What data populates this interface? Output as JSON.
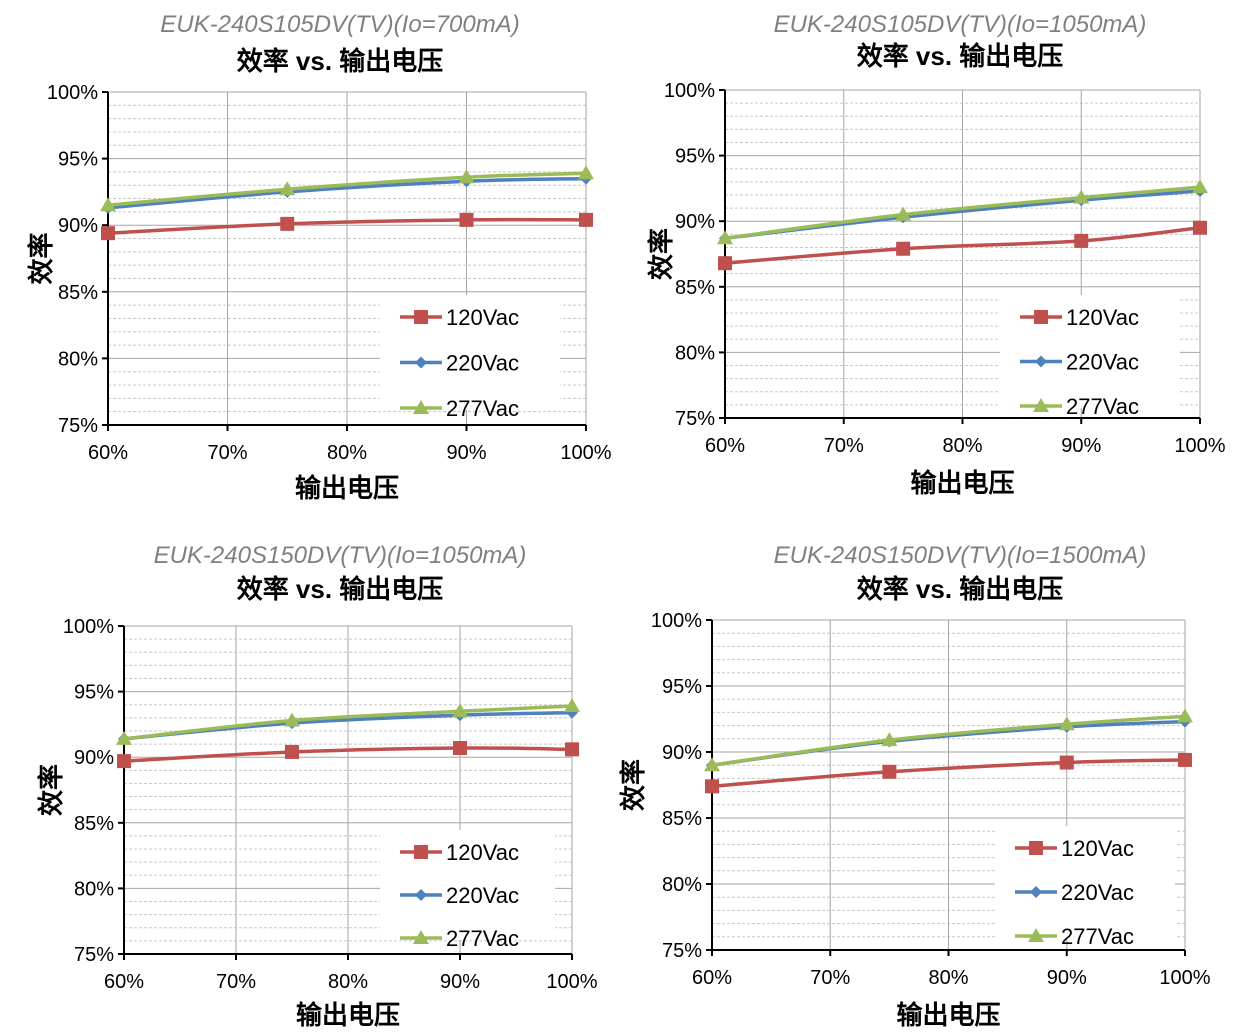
{
  "colors": {
    "120Vac": "#C0504D",
    "220Vac": "#4F81BD",
    "277Vac": "#9BBB59"
  },
  "chart_data": [
    {
      "type": "line",
      "subtitle": "EUK-240S105DV(TV)(Io=700mA)",
      "title": "效率 vs. 输出电压",
      "xlabel": "输出电压",
      "ylabel": "效率",
      "x": [
        60,
        75,
        90,
        100
      ],
      "xticks": [
        "60%",
        "70%",
        "80%",
        "90%",
        "100%"
      ],
      "yticks": [
        "75%",
        "80%",
        "85%",
        "90%",
        "95%",
        "100%"
      ],
      "xlim": [
        60,
        100
      ],
      "ylim": [
        75,
        100
      ],
      "grid": true,
      "legend": "bottom-right",
      "series": [
        {
          "name": "120Vac",
          "marker": "square",
          "values": [
            89.4,
            90.1,
            90.4,
            90.4
          ]
        },
        {
          "name": "220Vac",
          "marker": "diamond",
          "values": [
            91.3,
            92.5,
            93.3,
            93.5
          ]
        },
        {
          "name": "277Vac",
          "marker": "triangle",
          "values": [
            91.5,
            92.7,
            93.6,
            93.9
          ]
        }
      ]
    },
    {
      "type": "line",
      "subtitle": "EUK-240S105DV(TV)(Io=1050mA)",
      "title": "效率 vs. 输出电压",
      "xlabel": "输出电压",
      "ylabel": "效率",
      "x": [
        60,
        75,
        90,
        100
      ],
      "xticks": [
        "60%",
        "70%",
        "80%",
        "90%",
        "100%"
      ],
      "yticks": [
        "75%",
        "80%",
        "85%",
        "90%",
        "95%",
        "100%"
      ],
      "xlim": [
        60,
        100
      ],
      "ylim": [
        75,
        100
      ],
      "grid": true,
      "legend": "bottom-right",
      "series": [
        {
          "name": "120Vac",
          "marker": "square",
          "values": [
            86.8,
            87.9,
            88.5,
            89.5
          ]
        },
        {
          "name": "220Vac",
          "marker": "diamond",
          "values": [
            88.7,
            90.3,
            91.6,
            92.3
          ]
        },
        {
          "name": "277Vac",
          "marker": "triangle",
          "values": [
            88.7,
            90.5,
            91.8,
            92.6
          ]
        }
      ]
    },
    {
      "type": "line",
      "subtitle": "EUK-240S150DV(TV)(Io=1050mA)",
      "title": "效率 vs. 输出电压",
      "xlabel": "输出电压",
      "ylabel": "效率",
      "x": [
        60,
        75,
        90,
        100
      ],
      "xticks": [
        "60%",
        "70%",
        "80%",
        "90%",
        "100%"
      ],
      "yticks": [
        "75%",
        "80%",
        "85%",
        "90%",
        "95%",
        "100%"
      ],
      "xlim": [
        60,
        100
      ],
      "ylim": [
        75,
        100
      ],
      "grid": true,
      "legend": "bottom-right",
      "series": [
        {
          "name": "120Vac",
          "marker": "square",
          "values": [
            89.7,
            90.4,
            90.7,
            90.6
          ]
        },
        {
          "name": "220Vac",
          "marker": "diamond",
          "values": [
            91.4,
            92.6,
            93.2,
            93.4
          ]
        },
        {
          "name": "277Vac",
          "marker": "triangle",
          "values": [
            91.4,
            92.8,
            93.5,
            93.9
          ]
        }
      ]
    },
    {
      "type": "line",
      "subtitle": "EUK-240S150DV(TV)(Io=1500mA)",
      "title": "效率 vs. 输出电压",
      "xlabel": "输出电压",
      "ylabel": "效率",
      "x": [
        60,
        75,
        90,
        100
      ],
      "xticks": [
        "60%",
        "70%",
        "80%",
        "90%",
        "100%"
      ],
      "yticks": [
        "75%",
        "80%",
        "85%",
        "90%",
        "95%",
        "100%"
      ],
      "xlim": [
        60,
        100
      ],
      "ylim": [
        75,
        100
      ],
      "grid": true,
      "legend": "bottom-right",
      "series": [
        {
          "name": "120Vac",
          "marker": "square",
          "values": [
            87.4,
            88.5,
            89.2,
            89.4
          ]
        },
        {
          "name": "220Vac",
          "marker": "diamond",
          "values": [
            89.0,
            90.8,
            91.9,
            92.3
          ]
        },
        {
          "name": "277Vac",
          "marker": "triangle",
          "values": [
            89.0,
            90.9,
            92.1,
            92.7
          ]
        }
      ]
    }
  ]
}
